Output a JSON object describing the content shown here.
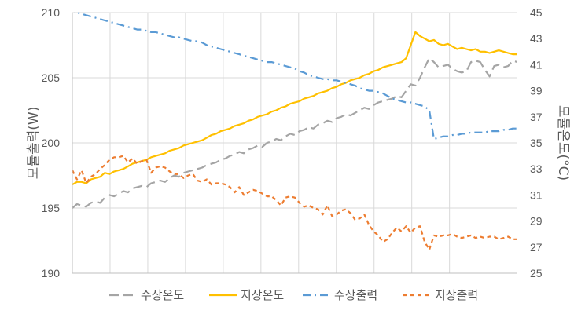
{
  "chart_data": {
    "type": "line",
    "xlabel": "",
    "ylabel_left": "모듈출력(W)",
    "ylabel_right": "모듈온도(°C)",
    "ylim_left": [
      190,
      210
    ],
    "ylim_right": [
      25,
      45
    ],
    "yticks_left": [
      190,
      195,
      200,
      205,
      210
    ],
    "yticks_right": [
      25,
      27,
      29,
      31,
      33,
      35,
      37,
      39,
      41,
      43,
      45
    ],
    "grid": true,
    "legend_position": "bottom",
    "series": [
      {
        "name": "수상온도",
        "axis": "right",
        "color": "#a5a5a5",
        "dash": "long-dash",
        "values": [
          30.0,
          30.3,
          30.2,
          30.1,
          30.4,
          30.5,
          30.4,
          30.8,
          31.0,
          30.9,
          31.1,
          31.3,
          31.2,
          31.5,
          31.6,
          31.7,
          31.6,
          31.9,
          32.0,
          32.1,
          32.0,
          32.3,
          32.5,
          32.4,
          32.7,
          32.8,
          32.9,
          33.0,
          33.1,
          33.3,
          33.4,
          33.5,
          33.7,
          33.8,
          34.0,
          34.1,
          34.3,
          34.2,
          34.5,
          34.6,
          34.8,
          34.7,
          35.0,
          35.1,
          35.3,
          35.2,
          35.5,
          35.7,
          35.6,
          35.9,
          36.0,
          36.2,
          36.1,
          36.4,
          36.5,
          36.7,
          36.6,
          36.9,
          37.0,
          37.2,
          37.1,
          37.3,
          37.5,
          37.7,
          37.6,
          37.9,
          38.1,
          38.2,
          38.3,
          38.4,
          38.6,
          38.5,
          39.0,
          39.5,
          39.4,
          40.0,
          40.8,
          41.5,
          41.2,
          40.8,
          40.9,
          41.0,
          40.7,
          40.5,
          40.4,
          40.5,
          41.2,
          41.3,
          41.2,
          40.6,
          40.1,
          40.9,
          41.0,
          40.8,
          40.9,
          41.3,
          41.2
        ],
        "x_start": 0,
        "x_end": 96
      },
      {
        "name": "지상온도",
        "axis": "right",
        "color": "#ffc000",
        "dash": "solid",
        "values": [
          31.8,
          32.0,
          32.0,
          31.9,
          32.2,
          32.3,
          32.4,
          32.7,
          32.6,
          32.8,
          32.9,
          33.0,
          33.2,
          33.4,
          33.5,
          33.6,
          33.7,
          33.9,
          34.0,
          34.1,
          34.2,
          34.4,
          34.5,
          34.6,
          34.8,
          34.9,
          35.0,
          35.1,
          35.2,
          35.4,
          35.6,
          35.7,
          35.9,
          36.0,
          36.1,
          36.3,
          36.4,
          36.5,
          36.7,
          36.8,
          37.0,
          37.1,
          37.2,
          37.4,
          37.5,
          37.7,
          37.8,
          38.0,
          38.1,
          38.2,
          38.4,
          38.5,
          38.6,
          38.8,
          38.9,
          39.0,
          39.2,
          39.3,
          39.5,
          39.6,
          39.8,
          39.9,
          40.0,
          40.2,
          40.3,
          40.5,
          40.6,
          40.8,
          40.9,
          41.0,
          41.1,
          41.2,
          41.5,
          42.5,
          43.5,
          43.2,
          43.0,
          42.8,
          42.9,
          42.6,
          42.5,
          42.6,
          42.4,
          42.2,
          42.3,
          42.2,
          42.1,
          42.2,
          42.0,
          42.0,
          41.9,
          42.0,
          42.1,
          42.0,
          41.9,
          41.8,
          41.8
        ],
        "x_start": 0,
        "x_end": 96
      },
      {
        "name": "수상출력",
        "axis": "left",
        "color": "#5b9bd5",
        "dash": "dash-dot",
        "values": [
          210.4,
          210.2,
          210.0,
          209.9,
          209.8,
          209.7,
          209.6,
          209.5,
          209.4,
          209.3,
          209.2,
          209.1,
          209.0,
          208.9,
          208.8,
          208.7,
          208.7,
          208.6,
          208.5,
          208.5,
          208.4,
          208.3,
          208.2,
          208.1,
          208.1,
          208.0,
          207.9,
          207.8,
          207.8,
          207.7,
          207.5,
          207.4,
          207.3,
          207.2,
          207.1,
          207.0,
          206.9,
          206.8,
          206.7,
          206.6,
          206.5,
          206.4,
          206.3,
          206.2,
          206.2,
          206.1,
          206.0,
          205.9,
          205.8,
          205.7,
          205.5,
          205.4,
          205.2,
          205.1,
          205.0,
          204.9,
          204.9,
          204.8,
          204.8,
          204.7,
          204.6,
          204.5,
          204.4,
          204.2,
          204.1,
          204.0,
          204.0,
          203.9,
          203.8,
          203.6,
          203.4,
          203.3,
          203.2,
          203.1,
          203.1,
          203.0,
          202.9,
          202.8,
          202.5,
          200.3,
          200.4,
          200.5,
          200.5,
          200.6,
          200.6,
          200.7,
          200.7,
          200.8,
          200.8,
          200.8,
          200.8,
          200.9,
          200.9,
          200.9,
          201.0,
          201.0,
          201.1,
          201.1
        ],
        "x_start": -1,
        "x_end": 96
      },
      {
        "name": "지상출력",
        "axis": "left",
        "color": "#ed7d31",
        "dash": "short-dash",
        "values": [
          197.9,
          197.2,
          197.9,
          196.9,
          197.4,
          197.6,
          198.0,
          198.3,
          198.7,
          198.9,
          198.9,
          199.0,
          198.5,
          198.8,
          198.4,
          198.6,
          198.7,
          197.7,
          198.1,
          198.2,
          198.1,
          197.8,
          197.6,
          197.6,
          197.3,
          197.5,
          197.6,
          197.1,
          197.0,
          197.2,
          196.8,
          196.9,
          196.9,
          196.8,
          196.6,
          196.2,
          196.6,
          196.0,
          196.2,
          196.4,
          196.3,
          196.1,
          195.9,
          195.9,
          195.6,
          195.2,
          195.8,
          195.9,
          195.8,
          195.4,
          195.1,
          195.2,
          195.0,
          194.9,
          194.5,
          195.2,
          194.4,
          194.5,
          194.8,
          194.9,
          194.6,
          194.1,
          194.2,
          194.5,
          193.7,
          193.2,
          192.9,
          192.4,
          192.6,
          193.1,
          193.5,
          193.2,
          193.6,
          193.1,
          193.5,
          193.6,
          192.4,
          191.8,
          192.9,
          192.8,
          192.9,
          192.9,
          193.0,
          192.8,
          192.7,
          192.8,
          192.9,
          192.7,
          192.8,
          192.7,
          192.8,
          192.8,
          192.6,
          192.7,
          192.8,
          192.6,
          192.6
        ],
        "x_start": 0,
        "x_end": 96
      }
    ]
  }
}
